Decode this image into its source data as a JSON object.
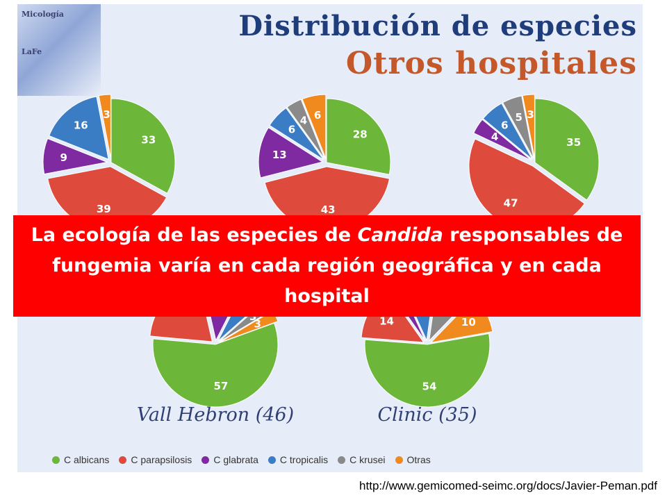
{
  "logo": {
    "line1": "Micología",
    "line2": "LaFe"
  },
  "title": {
    "line1": "Distribución de especies",
    "line2": "Otros hospitales"
  },
  "colors": {
    "C albicans": "#6cb63a",
    "C parapsilosis": "#de4b3d",
    "C glabrata": "#7f2aa0",
    "C tropicalis": "#3b7dc4",
    "C krusei": "#8a8a8a",
    "Otras": "#f08a1e"
  },
  "banner": {
    "before": "La ecología de las especies de ",
    "italic": "Candida",
    "after": " responsables de fungemia varía en cada región geográfica y en cada hospital"
  },
  "source": "http://www.gemicomed-seimc.org/docs/Javier-Peman.pdf",
  "chart_data": [
    {
      "type": "pie",
      "title": "",
      "series": [
        {
          "category": "C albicans",
          "value": 33
        },
        {
          "category": "C parapsilosis",
          "value": 39
        },
        {
          "category": "C glabrata",
          "value": 9
        },
        {
          "category": "C tropicalis",
          "value": 16
        },
        {
          "category": "Otras",
          "value": 3
        }
      ]
    },
    {
      "type": "pie",
      "title": "",
      "series": [
        {
          "category": "C albicans",
          "value": 28
        },
        {
          "category": "C parapsilosis",
          "value": 43
        },
        {
          "category": "C glabrata",
          "value": 13
        },
        {
          "category": "C tropicalis",
          "value": 6
        },
        {
          "category": "C krusei",
          "value": 4
        },
        {
          "category": "Otras",
          "value": 6
        }
      ]
    },
    {
      "type": "pie",
      "title": "",
      "series": [
        {
          "category": "C albicans",
          "value": 35
        },
        {
          "category": "C parapsilosis",
          "value": 47
        },
        {
          "category": "C glabrata",
          "value": 4
        },
        {
          "category": "C tropicalis",
          "value": 6
        },
        {
          "category": "C krusei",
          "value": 5
        },
        {
          "category": "Otras",
          "value": 3
        }
      ]
    },
    {
      "type": "pie",
      "title": "Vall Hebron (46)",
      "series": [
        {
          "category": "C albicans",
          "value": 57
        },
        {
          "category": "C parapsilosis",
          "value": 20
        },
        {
          "category": "C glabrata",
          "value": 11
        },
        {
          "category": "C tropicalis",
          "value": 6
        },
        {
          "category": "C krusei",
          "value": 3
        },
        {
          "category": "Otras",
          "value": 3
        }
      ]
    },
    {
      "type": "pie",
      "title": "Clinic (35)",
      "series": [
        {
          "category": "C albicans",
          "value": 54
        },
        {
          "category": "C parapsilosis",
          "value": 14
        },
        {
          "category": "C glabrata",
          "value": 3
        },
        {
          "category": "C tropicalis",
          "value": 9
        },
        {
          "category": "C krusei",
          "value": 10
        },
        {
          "category": "Otras",
          "value": 10
        }
      ]
    }
  ],
  "legend": [
    "C albicans",
    "C parapsilosis",
    "C glabrata",
    "C tropicalis",
    "C krusei",
    "Otras"
  ]
}
